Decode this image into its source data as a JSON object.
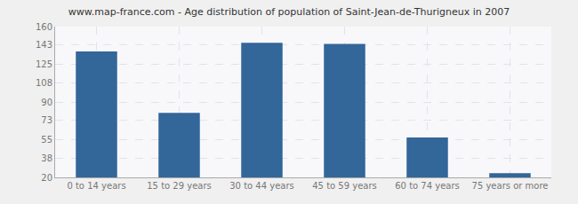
{
  "chart_data": {
    "type": "bar",
    "title": "www.map-france.com - Age distribution of population of Saint-Jean-de-Thurigneux in 2007",
    "categories": [
      "0 to 14 years",
      "15 to 29 years",
      "30 to 44 years",
      "45 to 59 years",
      "60 to 74 years",
      "75 years or more"
    ],
    "values": [
      137,
      80,
      145,
      144,
      57,
      24
    ],
    "color": "#336699",
    "ylim": [
      20,
      160
    ],
    "yticks": [
      20,
      38,
      55,
      73,
      90,
      108,
      125,
      143,
      160
    ],
    "grid": true
  }
}
